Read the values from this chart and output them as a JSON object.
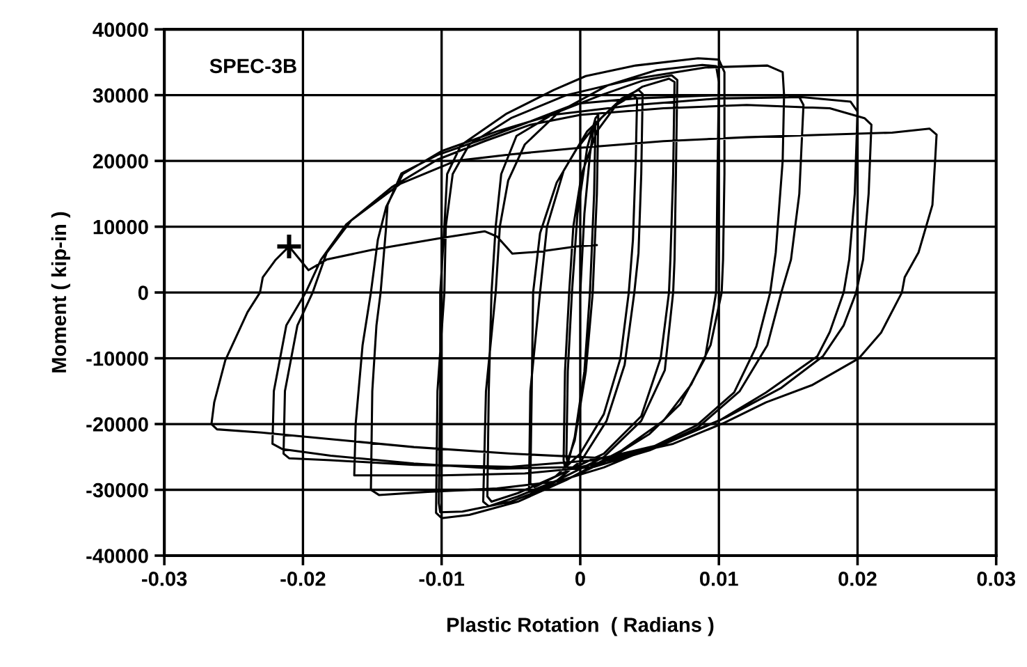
{
  "chart_data": {
    "type": "line",
    "xlabel": "Plastic Rotation  ( Radians )",
    "ylabel": "Moment ( kip-in )",
    "annotations": [
      "SPEC-3B"
    ],
    "xlim": [
      -0.03,
      0.03
    ],
    "xticks": [
      -0.03,
      -0.02,
      -0.01,
      0,
      0.01,
      0.02,
      0.03
    ],
    "ylim": [
      -40000,
      40000
    ],
    "yticks": [
      -40000,
      -30000,
      -20000,
      -10000,
      0,
      10000,
      20000,
      30000,
      40000
    ],
    "grid": true,
    "series": [
      {
        "color": "#000000",
        "x": [
          0,
          0.0003,
          0.0007,
          0.001,
          0.0011,
          0.001,
          0.0007,
          0.0003,
          -0.0004,
          -0.0009,
          -0.001,
          -0.0009,
          -0.0006,
          -0.0002,
          0.0005,
          0.0011,
          0.0013,
          0.0012,
          0.0009,
          0.0004,
          -0.0004,
          -0.0011,
          -0.0012,
          -0.0011,
          -0.0008,
          -0.0005,
          0.0001,
          0.0012,
          0.0026,
          0.0038,
          0.0041,
          0.004,
          0.0038,
          0.0035,
          0.0029,
          0.0017,
          0.0,
          -0.0018,
          -0.0033,
          -0.0036,
          -0.0035,
          -0.0034,
          -0.0029,
          -0.0017,
          -0.0003,
          0.0015,
          0.003,
          0.0042,
          0.0045,
          0.0044,
          0.0042,
          0.0039,
          0.0032,
          0.0019,
          0.0001,
          -0.0018,
          -0.0032,
          -0.0037,
          -0.0036,
          -0.0029,
          -0.0024,
          -0.0012,
          0.0005,
          0.0025,
          0.0045,
          0.0064,
          0.0068,
          0.0067,
          0.0065,
          0.0064,
          0.0058,
          0.0044,
          0.0017,
          -0.0016,
          -0.0045,
          -0.0064,
          -0.0067,
          -0.0066,
          -0.0064,
          -0.0061,
          -0.0057,
          -0.0046,
          -0.0019,
          0.0015,
          0.0045,
          0.0066,
          0.007,
          0.0069,
          0.0068,
          0.0067,
          0.0061,
          0.0044,
          0.0017,
          -0.0016,
          -0.0045,
          -0.0066,
          -0.007,
          -0.0068,
          -0.0061,
          -0.0058,
          -0.0052,
          -0.004,
          -0.0015,
          0.002,
          0.0055,
          0.0088,
          0.0098,
          0.01,
          0.0099,
          0.0098,
          0.009,
          0.0072,
          0.005,
          0.0017,
          -0.0016,
          -0.005,
          -0.0085,
          -0.0101,
          -0.0102,
          -0.0101,
          -0.0101,
          -0.0098,
          -0.0096,
          -0.0086,
          -0.0053,
          -0.0019,
          0.0004,
          0.004,
          0.0085,
          0.01,
          0.0104,
          0.0104,
          0.0103,
          0.0102,
          0.0094,
          0.008,
          0.006,
          0.003,
          -0.001,
          -0.0045,
          -0.008,
          -0.01,
          -0.0104,
          -0.0103,
          -0.0098,
          -0.0097,
          -0.0092,
          -0.008,
          -0.005,
          -0.001,
          0.004,
          0.009,
          0.0135,
          0.0146,
          0.0147,
          0.0146,
          0.0141,
          0.0137,
          0.0127,
          0.0111,
          0.0084,
          0.0051,
          0.0017,
          -0.0016,
          -0.006,
          -0.011,
          -0.0145,
          -0.0151,
          -0.015,
          -0.0147,
          -0.0144,
          -0.014,
          -0.0139,
          -0.0129,
          -0.0103,
          -0.0069,
          -0.0036,
          -0.0003,
          0.004,
          0.01,
          0.015,
          0.0158,
          0.0161,
          0.0158,
          0.0152,
          0.0145,
          0.0135,
          0.0115,
          0.0085,
          0.005,
          0.001,
          -0.004,
          -0.01,
          -0.0145,
          -0.0163,
          -0.0162,
          -0.0157,
          -0.0151,
          -0.0146,
          -0.014,
          -0.0128,
          -0.01,
          -0.006,
          -0.002,
          0.004,
          0.01,
          0.016,
          0.0195,
          0.02,
          0.0198,
          0.0194,
          0.019,
          0.018,
          0.0171,
          0.0134,
          0.0101,
          0.005,
          0.0001,
          -0.006,
          -0.012,
          -0.018,
          -0.0215,
          -0.0222,
          -0.0221,
          -0.0212,
          -0.0198,
          -0.0187,
          -0.0169,
          -0.0136,
          -0.0103,
          -0.0069,
          -0.0036,
          0.0,
          0.006,
          0.012,
          0.018,
          0.0205,
          0.021,
          0.0208,
          0.0204,
          0.0199,
          0.019,
          0.0175,
          0.0145,
          0.0105,
          0.006,
          0.001,
          -0.005,
          -0.012,
          -0.018,
          -0.021,
          -0.0214,
          -0.0213,
          -0.0204,
          -0.0193,
          -0.0183,
          -0.0165,
          -0.013,
          -0.009,
          -0.005,
          0.0,
          0.006,
          0.012,
          0.018,
          0.0225,
          0.0252,
          0.0257,
          0.0256,
          0.0254,
          0.0244,
          0.0234,
          0.0232,
          0.0217,
          0.0201,
          0.0167,
          0.0134,
          0.0104,
          0.0067,
          0.002,
          -0.005,
          -0.012,
          -0.018,
          -0.023,
          -0.0262,
          -0.0266,
          -0.0264,
          -0.0256,
          -0.024,
          -0.0231,
          -0.0229,
          -0.022,
          -0.021,
          -0.0196,
          -0.0183,
          -0.015,
          -0.01,
          -0.0069,
          -0.006,
          -0.0049,
          -0.003,
          -0.0003,
          0.0012
        ],
        "values": [
          0,
          12000,
          21000,
          25500,
          26000,
          15000,
          0,
          -12000,
          -22000,
          -26000,
          -25000,
          -12000,
          0,
          12000,
          22000,
          26500,
          27000,
          15000,
          0,
          -12000,
          -22500,
          -26600,
          -25500,
          -12000,
          0,
          10000,
          18000,
          24500,
          28500,
          30000,
          29500,
          20000,
          8000,
          0,
          -10000,
          -18500,
          -24500,
          -28000,
          -29600,
          -29000,
          -15000,
          0,
          9000,
          16700,
          21700,
          26500,
          29500,
          30800,
          30200,
          18000,
          6000,
          0,
          -11000,
          -19500,
          -25500,
          -28800,
          -30200,
          -30300,
          -15000,
          0,
          10000,
          18500,
          24500,
          28500,
          31300,
          32500,
          32000,
          18000,
          5000,
          0,
          -10000,
          -18800,
          -24500,
          -27800,
          -30500,
          -31800,
          -31000,
          -15000,
          0,
          10000,
          18000,
          23800,
          27200,
          30000,
          32200,
          33000,
          32300,
          18000,
          5000,
          0,
          -11800,
          -19500,
          -25000,
          -28500,
          -31000,
          -32500,
          -31800,
          -15000,
          0,
          10000,
          17000,
          22500,
          27500,
          31500,
          33800,
          34600,
          34400,
          32000,
          18000,
          0,
          -10000,
          -17000,
          -21500,
          -25800,
          -29000,
          -31800,
          -33300,
          -33400,
          -32000,
          -15000,
          0,
          10000,
          18000,
          22400,
          27200,
          30800,
          32900,
          34500,
          35600,
          35400,
          33500,
          18000,
          5000,
          0,
          -8000,
          -14000,
          -19500,
          -24000,
          -28500,
          -31800,
          -33800,
          -34300,
          -33500,
          -15000,
          0,
          10000,
          18000,
          22500,
          26500,
          30000,
          32500,
          34200,
          34500,
          33500,
          30000,
          20000,
          6100,
          0,
          -8200,
          -15200,
          -20200,
          -23600,
          -26600,
          -28700,
          -29800,
          -30300,
          -30800,
          -30000,
          -15000,
          -5000,
          0,
          10000,
          13300,
          18100,
          20900,
          23400,
          26000,
          28700,
          29500,
          30000,
          30000,
          29700,
          28500,
          15000,
          5000,
          0,
          -8000,
          -15000,
          -20500,
          -24000,
          -26500,
          -27500,
          -27800,
          -27800,
          -27800,
          -20000,
          -8000,
          0,
          8000,
          13000,
          18000,
          21500,
          24500,
          27000,
          28500,
          29500,
          29700,
          29000,
          27500,
          15000,
          5000,
          0,
          -6000,
          -9700,
          -15200,
          -19400,
          -24000,
          -26500,
          -26800,
          -26000,
          -24800,
          -23800,
          -23000,
          -15000,
          -5000,
          0,
          5000,
          10300,
          16000,
          20200,
          23000,
          25500,
          27000,
          28000,
          28500,
          28000,
          26500,
          25500,
          15000,
          5000,
          0,
          -5000,
          -9700,
          -14500,
          -19000,
          -23000,
          -25500,
          -26500,
          -26200,
          -25500,
          -25200,
          -24500,
          -15000,
          -5000,
          0,
          6000,
          11000,
          16500,
          20000,
          21000,
          22000,
          23000,
          23600,
          24000,
          24300,
          24900,
          24000,
          20200,
          13300,
          6100,
          2300,
          0,
          -6100,
          -10000,
          -14100,
          -16700,
          -19800,
          -23000,
          -25200,
          -24500,
          -23500,
          -22300,
          -21300,
          -20800,
          -20000,
          -16700,
          -10300,
          -3000,
          0,
          2300,
          4900,
          7000,
          3400,
          5000,
          6500,
          8300,
          9300,
          8500,
          5900,
          6200,
          7000,
          7200
        ]
      },
      {
        "type": "scatter",
        "color": "#000000",
        "marker": "cross",
        "x": [
          -0.021
        ],
        "values": [
          7000
        ]
      }
    ]
  }
}
